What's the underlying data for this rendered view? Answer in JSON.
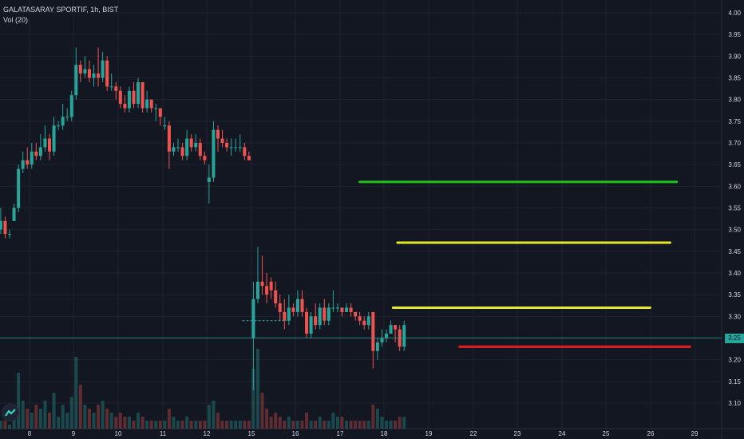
{
  "legend": {
    "symbol": "GALATASARAY SPORTIF, 1h, BIST",
    "volume": "Vol (20)"
  },
  "colors": {
    "background": "#131722",
    "grid": "#1f2330",
    "up": "#26a69a",
    "down": "#ef5350",
    "text": "#d1d4dc",
    "green_line": "#22c21a",
    "yellow_line": "#e6e62a",
    "red_line": "#e01e1e",
    "current_price": "#26a69a"
  },
  "icons": {
    "logo": "tradingview-logo-icon"
  },
  "chart_data": {
    "type": "candlestick",
    "title": "GALATASARAY SPORTIF, 1h, BIST",
    "indicator": "Vol (20)",
    "y_ticks": [
      "4.00",
      "3.95",
      "3.90",
      "3.85",
      "3.80",
      "3.75",
      "3.70",
      "3.65",
      "3.60",
      "3.55",
      "3.50",
      "3.45",
      "3.40",
      "3.35",
      "3.30",
      "3.25",
      "3.20",
      "3.15",
      "3.10"
    ],
    "x_ticks": [
      "8",
      "9",
      "10",
      "11",
      "12",
      "15",
      "16",
      "17",
      "18",
      "19",
      "22",
      "23",
      "24",
      "25",
      "26",
      "29"
    ],
    "ylim": [
      3.07,
      4.01
    ],
    "current_price_label": "3.25",
    "current_price": 3.25,
    "horizontal_lines": [
      {
        "name": "green",
        "y": 3.61,
        "x_start": 17.45,
        "x_end": 26.6
      },
      {
        "name": "yellow",
        "y": 3.47,
        "x_start": 18.3,
        "x_end": 26.45
      },
      {
        "name": "yellow",
        "y": 3.32,
        "x_start": 18.2,
        "x_end": 26.0
      },
      {
        "name": "red",
        "y": 3.23,
        "x_start": 19.7,
        "x_end": 26.9
      }
    ],
    "dashed_reference": {
      "y": 3.29,
      "x_start": 14.8,
      "x_end": 15.8
    },
    "candles": [
      [
        7.05,
        3.46,
        3.49,
        3.5,
        3.45
      ],
      [
        7.15,
        3.49,
        3.51,
        3.53,
        3.47
      ],
      [
        7.25,
        3.51,
        3.5,
        3.54,
        3.48
      ],
      [
        7.35,
        3.5,
        3.52,
        3.55,
        3.49
      ],
      [
        7.45,
        3.52,
        3.49,
        3.53,
        3.48
      ],
      [
        7.55,
        3.49,
        3.49,
        3.5,
        3.48
      ],
      [
        7.65,
        3.52,
        3.55,
        3.56,
        3.52
      ],
      [
        7.75,
        3.55,
        3.64,
        3.65,
        3.54
      ],
      [
        7.85,
        3.64,
        3.66,
        3.68,
        3.63
      ],
      [
        7.95,
        3.66,
        3.65,
        3.69,
        3.64
      ],
      [
        8.05,
        3.65,
        3.68,
        3.7,
        3.64
      ],
      [
        8.15,
        3.68,
        3.67,
        3.7,
        3.66
      ],
      [
        8.25,
        3.67,
        3.69,
        3.72,
        3.66
      ],
      [
        8.35,
        3.69,
        3.71,
        3.74,
        3.68
      ],
      [
        8.45,
        3.71,
        3.68,
        3.72,
        3.66
      ],
      [
        8.55,
        3.68,
        3.74,
        3.76,
        3.67
      ],
      [
        8.65,
        3.74,
        3.74,
        3.75,
        3.73
      ],
      [
        8.75,
        3.74,
        3.76,
        3.79,
        3.73
      ],
      [
        8.85,
        3.76,
        3.76,
        3.78,
        3.75
      ],
      [
        8.95,
        3.76,
        3.81,
        3.82,
        3.75
      ],
      [
        9.05,
        3.81,
        3.88,
        3.92,
        3.8
      ],
      [
        9.15,
        3.88,
        3.86,
        3.89,
        3.84
      ],
      [
        9.25,
        3.86,
        3.87,
        3.9,
        3.85
      ],
      [
        9.35,
        3.87,
        3.85,
        3.89,
        3.84
      ],
      [
        9.45,
        3.85,
        3.86,
        3.88,
        3.83
      ],
      [
        9.55,
        3.86,
        3.85,
        3.92,
        3.83
      ],
      [
        9.65,
        3.85,
        3.89,
        3.91,
        3.84
      ],
      [
        9.75,
        3.89,
        3.83,
        3.9,
        3.82
      ],
      [
        9.85,
        3.83,
        3.83,
        3.86,
        3.82
      ],
      [
        9.95,
        3.83,
        3.82,
        3.84,
        3.8
      ],
      [
        10.05,
        3.82,
        3.79,
        3.83,
        3.78
      ],
      [
        10.15,
        3.79,
        3.78,
        3.81,
        3.77
      ],
      [
        10.25,
        3.78,
        3.82,
        3.83,
        3.77
      ],
      [
        10.35,
        3.82,
        3.79,
        3.84,
        3.78
      ],
      [
        10.45,
        3.79,
        3.84,
        3.85,
        3.78
      ],
      [
        10.55,
        3.84,
        3.78,
        3.84,
        3.77
      ],
      [
        10.65,
        3.78,
        3.8,
        3.82,
        3.77
      ],
      [
        10.75,
        3.8,
        3.78,
        3.8,
        3.77
      ],
      [
        10.85,
        3.78,
        3.78,
        3.79,
        3.75
      ],
      [
        10.95,
        3.78,
        3.76,
        3.78,
        3.74
      ],
      [
        11.05,
        3.74,
        3.74,
        3.76,
        3.73
      ],
      [
        11.15,
        3.74,
        3.68,
        3.75,
        3.64
      ],
      [
        11.25,
        3.68,
        3.69,
        3.7,
        3.67
      ],
      [
        11.35,
        3.69,
        3.69,
        3.71,
        3.68
      ],
      [
        11.45,
        3.69,
        3.67,
        3.7,
        3.66
      ],
      [
        11.55,
        3.67,
        3.71,
        3.73,
        3.66
      ],
      [
        11.65,
        3.71,
        3.69,
        3.72,
        3.68
      ],
      [
        11.75,
        3.69,
        3.7,
        3.72,
        3.68
      ],
      [
        11.85,
        3.7,
        3.67,
        3.71,
        3.66
      ],
      [
        11.95,
        3.67,
        3.66,
        3.68,
        3.65
      ],
      [
        12.05,
        3.61,
        3.62,
        3.65,
        3.56
      ],
      [
        12.15,
        3.62,
        3.73,
        3.75,
        3.61
      ],
      [
        12.25,
        3.73,
        3.71,
        3.74,
        3.68
      ],
      [
        12.35,
        3.71,
        3.7,
        3.73,
        3.69
      ],
      [
        12.45,
        3.7,
        3.69,
        3.71,
        3.68
      ],
      [
        12.55,
        3.69,
        3.69,
        3.71,
        3.67
      ],
      [
        12.65,
        3.69,
        3.69,
        3.71,
        3.68
      ],
      [
        12.75,
        3.69,
        3.69,
        3.72,
        3.68
      ],
      [
        12.85,
        3.69,
        3.67,
        3.7,
        3.66
      ],
      [
        12.95,
        3.67,
        3.66,
        3.68,
        3.66
      ],
      [
        15.05,
        3.25,
        3.34,
        3.38,
        3.13
      ],
      [
        15.15,
        3.34,
        3.38,
        3.46,
        3.33
      ],
      [
        15.25,
        3.38,
        3.37,
        3.44,
        3.35
      ],
      [
        15.35,
        3.37,
        3.35,
        3.4,
        3.33
      ],
      [
        15.45,
        3.38,
        3.36,
        3.39,
        3.34
      ],
      [
        15.55,
        3.36,
        3.33,
        3.38,
        3.32
      ],
      [
        15.65,
        3.33,
        3.31,
        3.35,
        3.29
      ],
      [
        15.75,
        3.31,
        3.29,
        3.34,
        3.27
      ],
      [
        15.85,
        3.29,
        3.32,
        3.35,
        3.28
      ],
      [
        15.95,
        3.32,
        3.31,
        3.33,
        3.3
      ],
      [
        16.05,
        3.31,
        3.34,
        3.36,
        3.3
      ],
      [
        16.15,
        3.34,
        3.31,
        3.36,
        3.3
      ],
      [
        16.25,
        3.31,
        3.26,
        3.32,
        3.25
      ],
      [
        16.35,
        3.26,
        3.3,
        3.31,
        3.25
      ],
      [
        16.45,
        3.3,
        3.28,
        3.33,
        3.27
      ],
      [
        16.55,
        3.28,
        3.32,
        3.33,
        3.27
      ],
      [
        16.65,
        3.32,
        3.29,
        3.34,
        3.28
      ],
      [
        16.75,
        3.29,
        3.32,
        3.33,
        3.28
      ],
      [
        16.85,
        3.32,
        3.32,
        3.36,
        3.31
      ],
      [
        16.95,
        3.32,
        3.32,
        3.33,
        3.31
      ],
      [
        17.05,
        3.32,
        3.31,
        3.32,
        3.3
      ],
      [
        17.15,
        3.31,
        3.32,
        3.33,
        3.31
      ],
      [
        17.25,
        3.32,
        3.31,
        3.33,
        3.3
      ],
      [
        17.35,
        3.31,
        3.3,
        3.31,
        3.29
      ],
      [
        17.45,
        3.3,
        3.29,
        3.31,
        3.28
      ],
      [
        17.55,
        3.29,
        3.28,
        3.3,
        3.27
      ],
      [
        17.65,
        3.28,
        3.3,
        3.31,
        3.27
      ],
      [
        17.75,
        3.31,
        3.22,
        3.31,
        3.18
      ],
      [
        17.85,
        3.22,
        3.24,
        3.25,
        3.2
      ],
      [
        17.95,
        3.24,
        3.25,
        3.27,
        3.23
      ],
      [
        18.05,
        3.25,
        3.26,
        3.27,
        3.24
      ],
      [
        18.15,
        3.26,
        3.28,
        3.29,
        3.26
      ],
      [
        18.25,
        3.28,
        3.27,
        3.28,
        3.24
      ],
      [
        18.35,
        3.27,
        3.23,
        3.28,
        3.22
      ],
      [
        18.45,
        3.23,
        3.28,
        3.29,
        3.22
      ]
    ],
    "volumes": [
      [
        7.05,
        0.2
      ],
      [
        7.15,
        0.3
      ],
      [
        7.25,
        0.15
      ],
      [
        7.35,
        0.1
      ],
      [
        7.45,
        0.1
      ],
      [
        7.55,
        0.05
      ],
      [
        7.65,
        0.3
      ],
      [
        7.75,
        0.7
      ],
      [
        7.85,
        0.35
      ],
      [
        7.95,
        0.25
      ],
      [
        8.05,
        0.2
      ],
      [
        8.15,
        0.3
      ],
      [
        8.25,
        0.25
      ],
      [
        8.35,
        0.35
      ],
      [
        8.45,
        0.2
      ],
      [
        8.55,
        0.45
      ],
      [
        8.65,
        0.15
      ],
      [
        8.75,
        0.3
      ],
      [
        8.85,
        0.2
      ],
      [
        8.95,
        0.4
      ],
      [
        9.05,
        0.9
      ],
      [
        9.15,
        0.55
      ],
      [
        9.25,
        0.3
      ],
      [
        9.35,
        0.25
      ],
      [
        9.45,
        0.2
      ],
      [
        9.55,
        0.3
      ],
      [
        9.65,
        0.35
      ],
      [
        9.75,
        0.25
      ],
      [
        9.85,
        0.2
      ],
      [
        9.95,
        0.15
      ],
      [
        10.05,
        0.2
      ],
      [
        10.15,
        0.15
      ],
      [
        10.25,
        0.15
      ],
      [
        10.35,
        0.1
      ],
      [
        10.45,
        0.2
      ],
      [
        10.55,
        0.15
      ],
      [
        10.65,
        0.1
      ],
      [
        10.75,
        0.1
      ],
      [
        10.85,
        0.1
      ],
      [
        10.95,
        0.1
      ],
      [
        11.05,
        0.1
      ],
      [
        11.15,
        0.25
      ],
      [
        11.25,
        0.15
      ],
      [
        11.35,
        0.1
      ],
      [
        11.45,
        0.1
      ],
      [
        11.55,
        0.15
      ],
      [
        11.65,
        0.1
      ],
      [
        11.75,
        0.1
      ],
      [
        11.85,
        0.1
      ],
      [
        11.95,
        0.1
      ],
      [
        12.05,
        0.3
      ],
      [
        12.15,
        0.35
      ],
      [
        12.25,
        0.2
      ],
      [
        12.35,
        0.1
      ],
      [
        12.45,
        0.1
      ],
      [
        12.55,
        0.1
      ],
      [
        12.65,
        0.1
      ],
      [
        12.75,
        0.1
      ],
      [
        12.85,
        0.1
      ],
      [
        12.95,
        0.1
      ],
      [
        15.05,
        0.75
      ],
      [
        15.15,
        1.0
      ],
      [
        15.25,
        0.45
      ],
      [
        15.35,
        0.25
      ],
      [
        15.45,
        0.15
      ],
      [
        15.55,
        0.2
      ],
      [
        15.65,
        0.15
      ],
      [
        15.75,
        0.1
      ],
      [
        15.85,
        0.15
      ],
      [
        15.95,
        0.1
      ],
      [
        16.05,
        0.1
      ],
      [
        16.15,
        0.1
      ],
      [
        16.25,
        0.2
      ],
      [
        16.35,
        0.1
      ],
      [
        16.45,
        0.1
      ],
      [
        16.55,
        0.15
      ],
      [
        16.65,
        0.1
      ],
      [
        16.75,
        0.1
      ],
      [
        16.85,
        0.2
      ],
      [
        16.95,
        0.15
      ],
      [
        17.05,
        0.15
      ],
      [
        17.15,
        0.1
      ],
      [
        17.25,
        0.1
      ],
      [
        17.35,
        0.1
      ],
      [
        17.45,
        0.1
      ],
      [
        17.55,
        0.1
      ],
      [
        17.65,
        0.1
      ],
      [
        17.75,
        0.3
      ],
      [
        17.85,
        0.25
      ],
      [
        17.95,
        0.15
      ],
      [
        18.05,
        0.1
      ],
      [
        18.15,
        0.1
      ],
      [
        18.25,
        0.1
      ],
      [
        18.35,
        0.15
      ],
      [
        18.45,
        0.15
      ]
    ]
  }
}
